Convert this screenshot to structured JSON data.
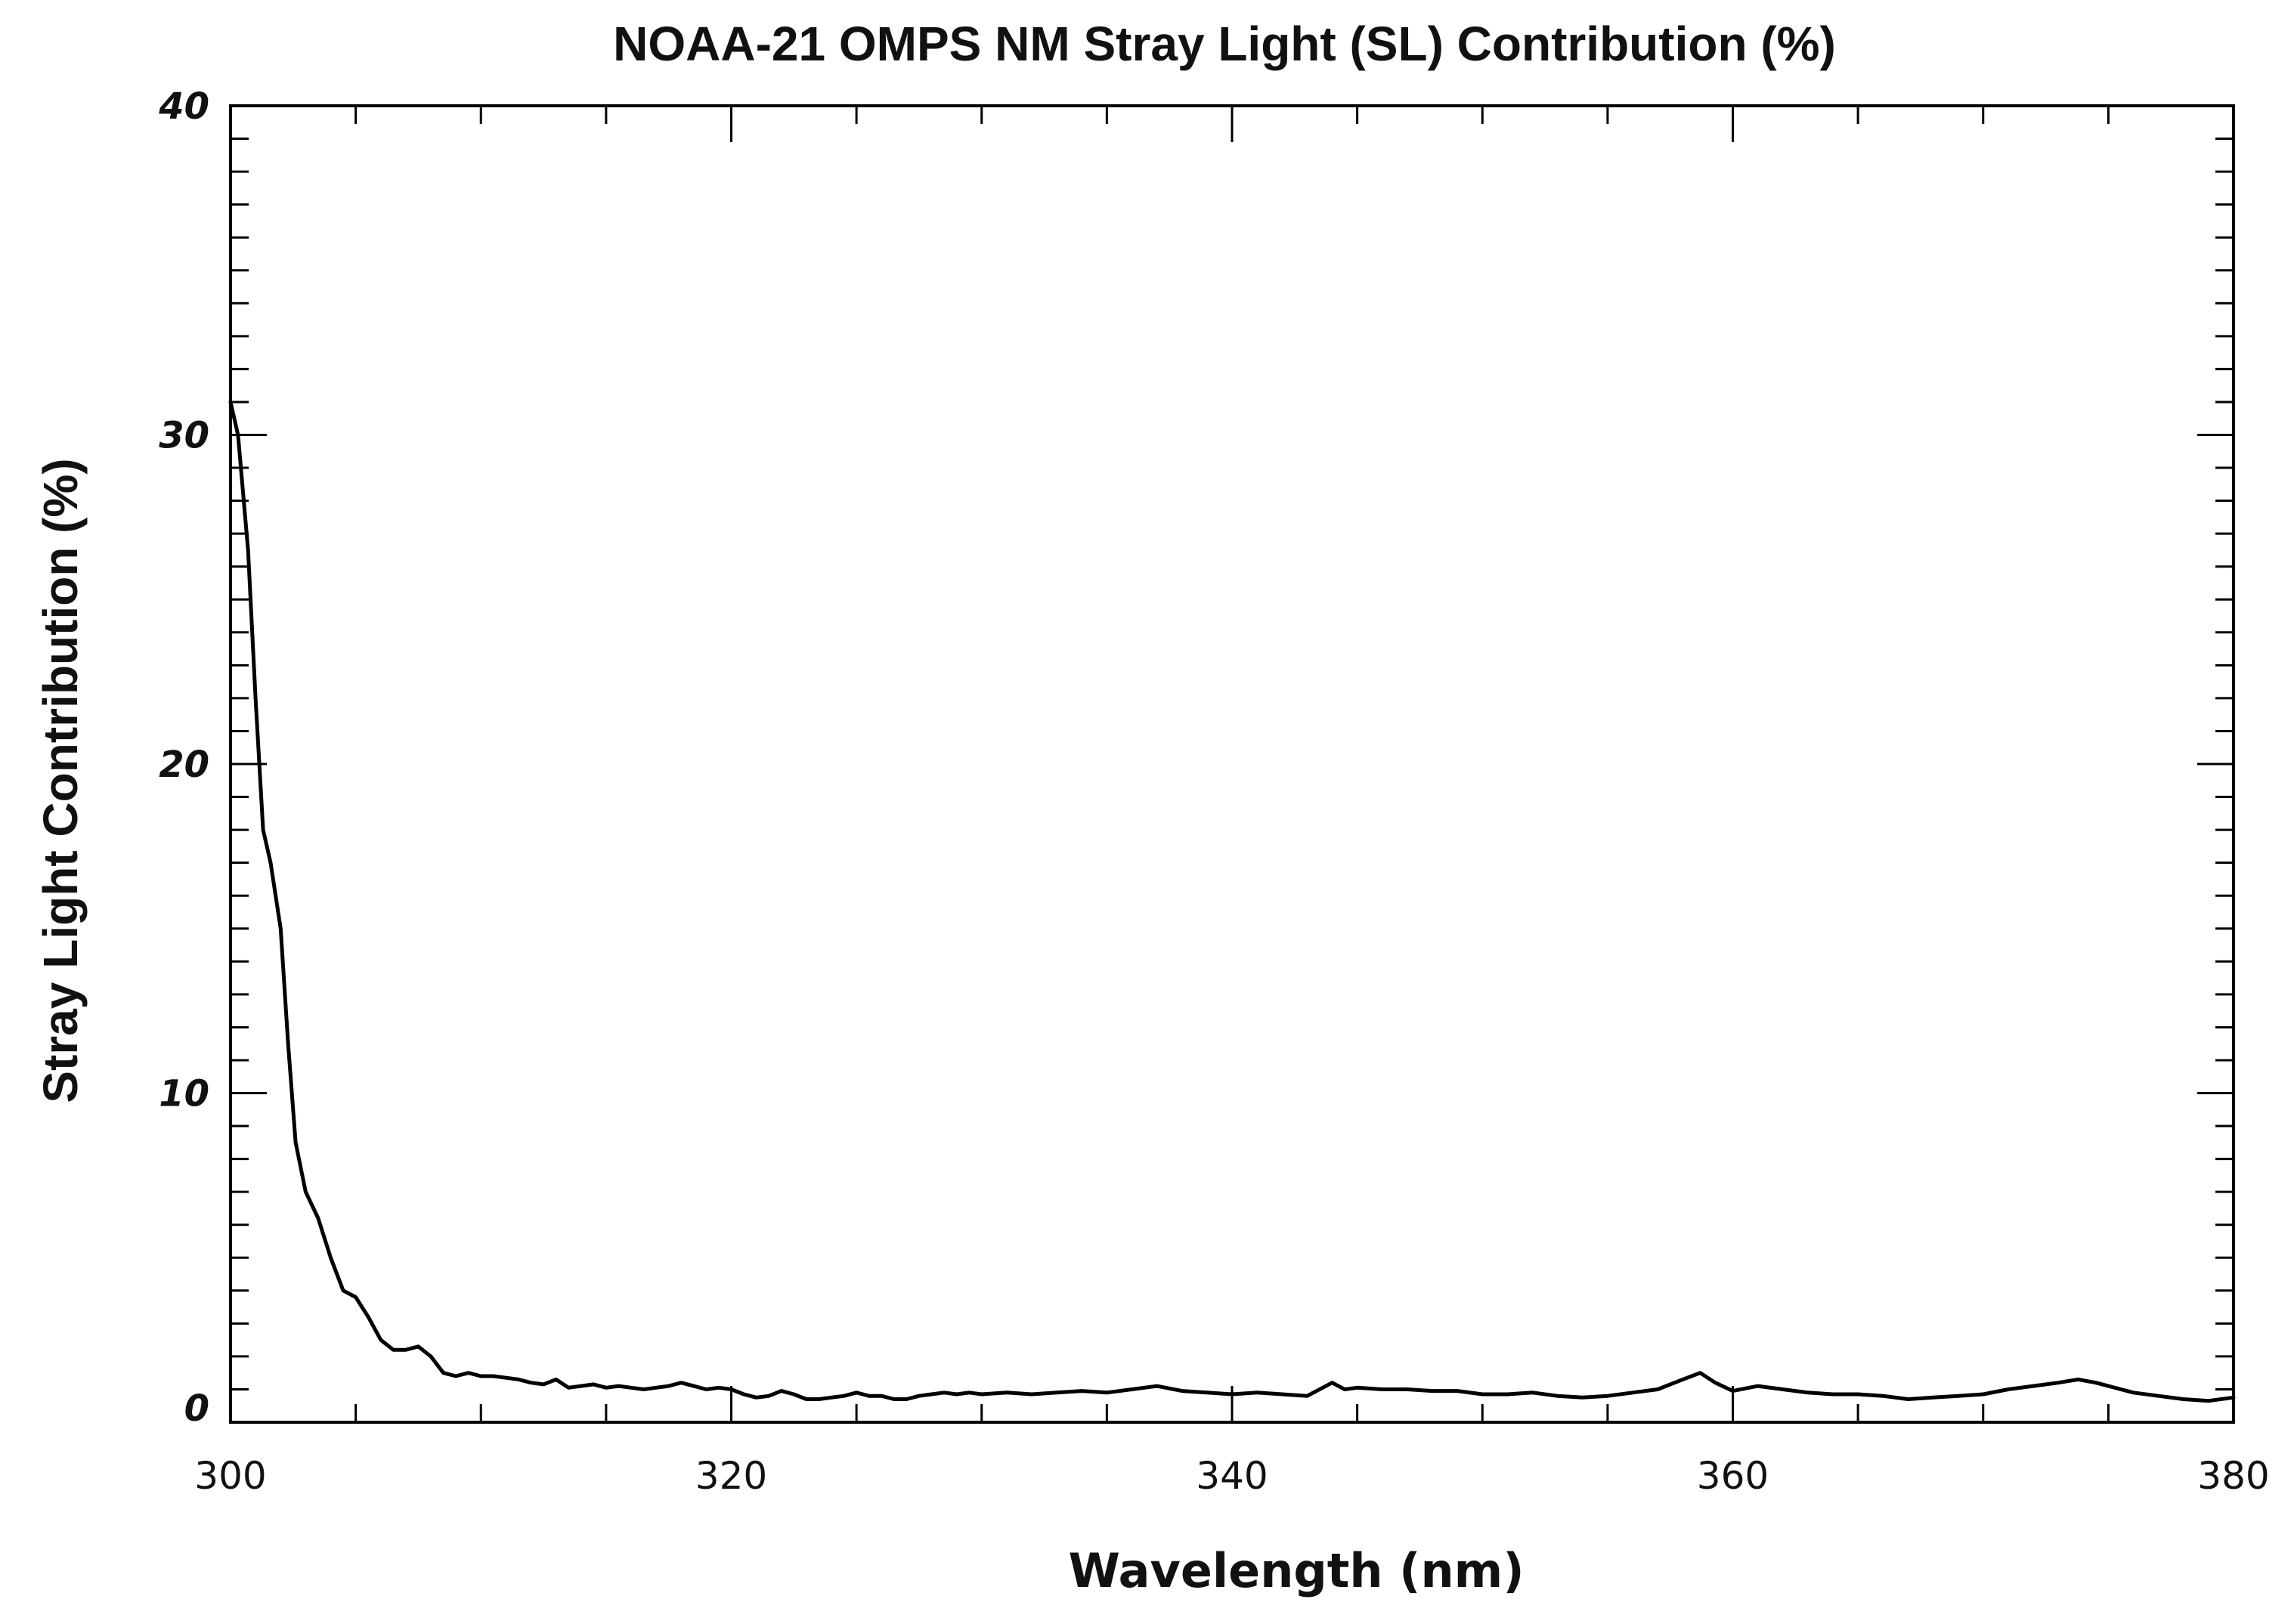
{
  "chart_data": {
    "type": "line",
    "title": "NOAA-21 OMPS NM Stray Light (SL) Contribution (%)",
    "xlabel": "Wavelength (nm)",
    "ylabel": "Stray Light Contribution (%)",
    "xlim": [
      300,
      380
    ],
    "ylim": [
      0,
      40
    ],
    "x_ticks": [
      "300",
      "320",
      "340",
      "360",
      "380"
    ],
    "y_ticks": [
      "0",
      "10",
      "20",
      "30",
      "40"
    ],
    "x_minor_step": 5,
    "y_minor_step": 1,
    "grid": false,
    "line_color": "#000000",
    "series": [
      {
        "name": "Stray Light Contribution",
        "x": [
          300.0,
          300.3,
          300.7,
          301.0,
          301.3,
          301.6,
          302.0,
          302.3,
          302.6,
          303.0,
          303.5,
          304.0,
          304.5,
          305.0,
          305.5,
          306.0,
          306.5,
          307.0,
          307.5,
          308.0,
          308.5,
          309.0,
          309.5,
          310.0,
          310.5,
          311.0,
          311.5,
          312.0,
          312.5,
          313.0,
          313.5,
          314.0,
          314.5,
          315.0,
          315.5,
          316.0,
          316.5,
          317.0,
          317.5,
          318.0,
          318.5,
          319.0,
          319.5,
          320.0,
          320.5,
          321.0,
          321.5,
          322.0,
          322.5,
          323.0,
          323.5,
          324.0,
          324.5,
          325.0,
          325.5,
          326.0,
          326.5,
          327.0,
          327.5,
          328.0,
          328.5,
          329.0,
          329.5,
          330.0,
          331.0,
          332.0,
          333.0,
          334.0,
          335.0,
          336.0,
          337.0,
          338.0,
          339.0,
          340.0,
          341.0,
          342.0,
          343.0,
          344.0,
          344.5,
          345.0,
          346.0,
          347.0,
          348.0,
          349.0,
          350.0,
          351.0,
          352.0,
          353.0,
          354.0,
          355.0,
          356.0,
          357.0,
          358.0,
          358.7,
          359.3,
          360.0,
          361.0,
          362.0,
          363.0,
          364.0,
          365.0,
          366.0,
          367.0,
          368.0,
          369.0,
          370.0,
          371.0,
          372.0,
          373.0,
          373.8,
          374.5,
          375.0,
          376.0,
          377.0,
          378.0,
          379.0,
          380.0
        ],
        "values": [
          31.0,
          30.0,
          26.5,
          22.0,
          18.0,
          17.0,
          15.0,
          11.5,
          8.5,
          7.0,
          6.2,
          5.0,
          4.0,
          3.8,
          3.2,
          2.5,
          2.2,
          2.2,
          2.3,
          2.0,
          1.5,
          1.4,
          1.5,
          1.4,
          1.4,
          1.35,
          1.3,
          1.2,
          1.15,
          1.3,
          1.05,
          1.1,
          1.15,
          1.05,
          1.1,
          1.05,
          1.0,
          1.05,
          1.1,
          1.2,
          1.1,
          1.0,
          1.05,
          1.0,
          0.85,
          0.75,
          0.8,
          0.95,
          0.85,
          0.7,
          0.7,
          0.75,
          0.8,
          0.9,
          0.8,
          0.8,
          0.7,
          0.7,
          0.8,
          0.85,
          0.9,
          0.85,
          0.9,
          0.85,
          0.9,
          0.85,
          0.9,
          0.95,
          0.9,
          1.0,
          1.1,
          0.95,
          0.9,
          0.85,
          0.9,
          0.85,
          0.8,
          1.2,
          1.0,
          1.05,
          1.0,
          1.0,
          0.95,
          0.95,
          0.85,
          0.85,
          0.9,
          0.8,
          0.75,
          0.8,
          0.9,
          1.0,
          1.3,
          1.5,
          1.2,
          0.95,
          1.1,
          1.0,
          0.9,
          0.85,
          0.85,
          0.8,
          0.7,
          0.75,
          0.8,
          0.85,
          1.0,
          1.1,
          1.2,
          1.3,
          1.2,
          1.1,
          0.9,
          0.8,
          0.7,
          0.65,
          0.75
        ]
      }
    ]
  }
}
